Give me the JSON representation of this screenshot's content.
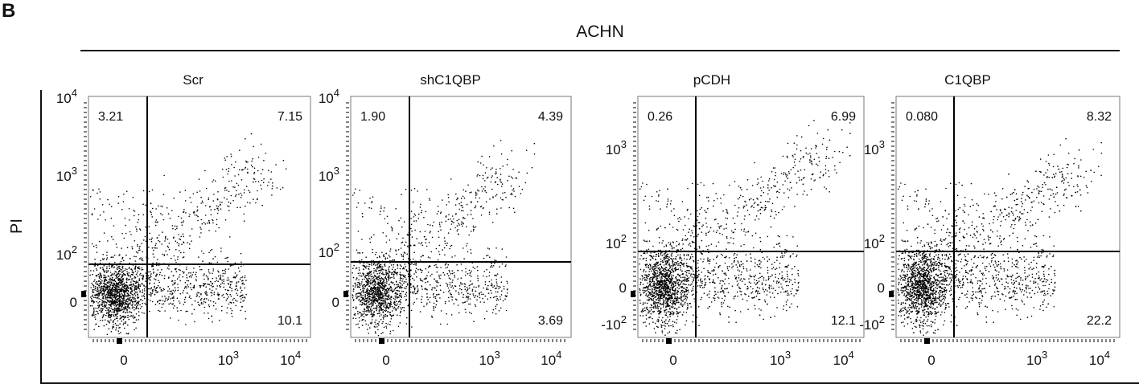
{
  "figure": {
    "panel_label": "B",
    "header": "ACHN",
    "y_axis_label": "PI"
  },
  "chart_data": [
    {
      "type": "scatter",
      "title": "Scr",
      "axis_style": "A",
      "quadrants": {
        "upper_left": "3.21",
        "upper_right": "7.15",
        "lower_right": "10.1"
      },
      "xticks": [
        "0",
        "10^3",
        "10^4"
      ],
      "yticks": [
        "0",
        "10^2",
        "10^3",
        "10^4"
      ]
    },
    {
      "type": "scatter",
      "title": "shC1QBP",
      "axis_style": "A",
      "quadrants": {
        "upper_left": "1.90",
        "upper_right": "4.39",
        "lower_right": "3.69"
      },
      "xticks": [
        "0",
        "10^3",
        "10^4"
      ],
      "yticks": [
        "0",
        "10^2",
        "10^3",
        "10^4"
      ]
    },
    {
      "type": "scatter",
      "title": "pCDH",
      "axis_style": "B",
      "quadrants": {
        "upper_left": "0.26",
        "upper_right": "6.99",
        "lower_right": "12.1"
      },
      "xticks": [
        "0",
        "10^3",
        "10^4"
      ],
      "yticks": [
        "-10^2",
        "0",
        "10^2",
        "10^3"
      ]
    },
    {
      "type": "scatter",
      "title": "C1QBP",
      "axis_style": "B",
      "quadrants": {
        "upper_left": "0.080",
        "upper_right": "8.32",
        "lower_right": "22.2"
      },
      "xticks": [
        "0",
        "10^3",
        "10^4"
      ],
      "yticks": [
        "-10^2",
        "0",
        "10^2",
        "10^3"
      ]
    }
  ]
}
